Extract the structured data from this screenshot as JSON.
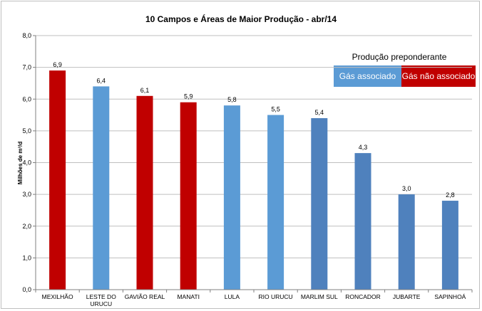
{
  "chart_data": {
    "type": "bar",
    "title": "10 Campos  e Áreas de Maior Produção - abr/14",
    "xlabel": "",
    "ylabel": "Milhões de m³/d",
    "ylim": [
      0,
      8
    ],
    "yticks": [
      "0,0",
      "1,0",
      "2,0",
      "3,0",
      "4,0",
      "5,0",
      "6,0",
      "7,0",
      "8,0"
    ],
    "grid": true,
    "categories": [
      [
        "MEXILHÃO"
      ],
      [
        "LESTE DO",
        "URUCU"
      ],
      [
        "GAVIÃO REAL"
      ],
      [
        "MANATI"
      ],
      [
        "LULA"
      ],
      [
        "RIO URUCU"
      ],
      [
        "MARLIM SUL"
      ],
      [
        "RONCADOR"
      ],
      [
        "JUBARTE"
      ],
      [
        "SAPINHOÁ"
      ]
    ],
    "values": [
      6.9,
      6.4,
      6.1,
      5.9,
      5.8,
      5.5,
      5.4,
      4.3,
      3.0,
      2.8
    ],
    "value_labels": [
      "6,9",
      "6,4",
      "6,1",
      "5,9",
      "5,8",
      "5,5",
      "5,4",
      "4,3",
      "3,0",
      "2,8"
    ],
    "bar_colors": [
      "#c00000",
      "#5b9bd5",
      "#c00000",
      "#c00000",
      "#5b9bd5",
      "#5b9bd5",
      "#4f81bd",
      "#4f81bd",
      "#4f81bd",
      "#4f81bd"
    ],
    "legend": {
      "title": "Produção preponderante",
      "placement": "top-right",
      "entries": [
        {
          "label": "Gás associado",
          "color": "#5b9bd5"
        },
        {
          "label": "Gás não associado",
          "color": "#c00000"
        }
      ]
    }
  }
}
